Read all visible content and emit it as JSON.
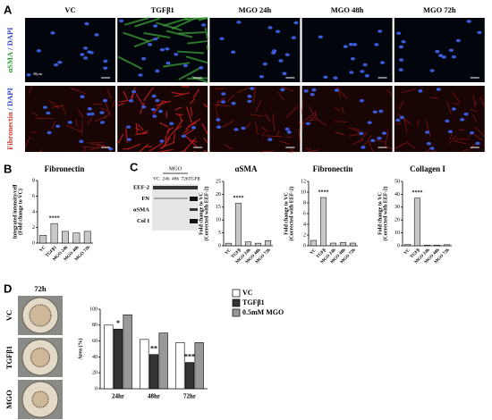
{
  "panel_labels": [
    "A",
    "B",
    "C",
    "D"
  ],
  "panel_a": {
    "columns": [
      "VC",
      "TGFβ1",
      "MGO 24h",
      "MGO 48h",
      "MGO 72h"
    ],
    "rows": [
      [
        "αSMA",
        "/ DAPI"
      ],
      [
        "Fibronectin",
        "/ DAPI"
      ]
    ],
    "scale_bar": "40μm"
  },
  "blot": {
    "group": "MGO",
    "lanes": [
      "VC",
      "24h",
      "48h",
      "72h",
      "TGFβ"
    ],
    "bands": [
      "EEF-2",
      "FN",
      "αSMA",
      "Col I"
    ]
  },
  "panel_d": {
    "time": "72h",
    "rows": [
      "VC",
      "TGFβ1",
      "MGO"
    ]
  },
  "chart_data": [
    {
      "type": "bar",
      "title": "Fibronectin",
      "ylabel": [
        "Integrated intensity/cell",
        "(Fold change to VC)"
      ],
      "categories": [
        "VC",
        "TGFβ1",
        "MGO 24h",
        "MGO 48h",
        "MGO 72h"
      ],
      "values": [
        1.0,
        2.5,
        1.5,
        1.3,
        1.5
      ],
      "color": "#c8c8c8",
      "ylim": [
        0,
        8
      ],
      "yticks": [
        0,
        2,
        4,
        6,
        8
      ],
      "annotations": [
        {
          "text": "****",
          "x": "TGFβ1"
        }
      ]
    },
    {
      "type": "bar",
      "title": "αSMA",
      "ylabel": [
        "Fold change to VC",
        "(Corrected with EEF-2)"
      ],
      "categories": [
        "VC",
        "TGFβ",
        "MGO 24h",
        "MGO 48h",
        "MGO 72h"
      ],
      "values": [
        1,
        16.5,
        1.5,
        1,
        2
      ],
      "color": "#c8c8c8",
      "ylim": [
        0,
        25
      ],
      "yticks": [
        0,
        5,
        10,
        15,
        20,
        25
      ],
      "annotations": [
        {
          "text": "****",
          "x": "TGFβ"
        }
      ]
    },
    {
      "type": "bar",
      "title": "Fibronectin",
      "ylabel": [
        "Fold change to VC",
        "(Corrected with EEF-2)"
      ],
      "categories": [
        "VC",
        "TGFβ",
        "MGO 24h",
        "MGO 48h",
        "MGO 72h"
      ],
      "values": [
        1,
        9,
        0.5,
        0.6,
        0.5
      ],
      "color": "#c8c8c8",
      "ylim": [
        0,
        12
      ],
      "yticks": [
        0,
        2,
        4,
        6,
        8,
        10,
        12
      ],
      "annotations": [
        {
          "text": "****",
          "x": "TGFβ"
        }
      ]
    },
    {
      "type": "bar",
      "title": "Collagen I",
      "ylabel": [
        "Fold change to VC",
        "(Corrected with EEF-2)"
      ],
      "categories": [
        "VC",
        "TGFβ",
        "MGO 24h",
        "MGO 48h",
        "MGO 72h"
      ],
      "values": [
        1,
        37,
        0.5,
        0.5,
        0.8
      ],
      "color": "#c8c8c8",
      "ylim": [
        0,
        50
      ],
      "yticks": [
        0,
        10,
        20,
        30,
        40,
        50
      ],
      "annotations": [
        {
          "text": "****",
          "x": "TGFβ"
        }
      ]
    },
    {
      "type": "grouped_bar",
      "ylabel": [
        "Area (%)"
      ],
      "categories": [
        "24hr",
        "48hr",
        "72hr"
      ],
      "series": [
        {
          "name": "VC",
          "color": "#ffffff",
          "values": [
            80,
            62,
            58
          ]
        },
        {
          "name": "TGFβ1",
          "color": "#333333",
          "values": [
            75,
            43,
            33
          ]
        },
        {
          "name": "0.5mM MGO",
          "color": "#999999",
          "values": [
            93,
            70,
            58
          ]
        }
      ],
      "ylim": [
        0,
        100
      ],
      "yticks": [
        0,
        20,
        40,
        60,
        80,
        100
      ],
      "legend": "upper right",
      "annotations": [
        {
          "text": "*",
          "x": "24hr",
          "series": "TGFβ1"
        },
        {
          "text": "**",
          "x": "48hr",
          "series": "TGFβ1"
        },
        {
          "text": "***",
          "x": "72hr",
          "series": "TGFβ1"
        }
      ]
    }
  ]
}
